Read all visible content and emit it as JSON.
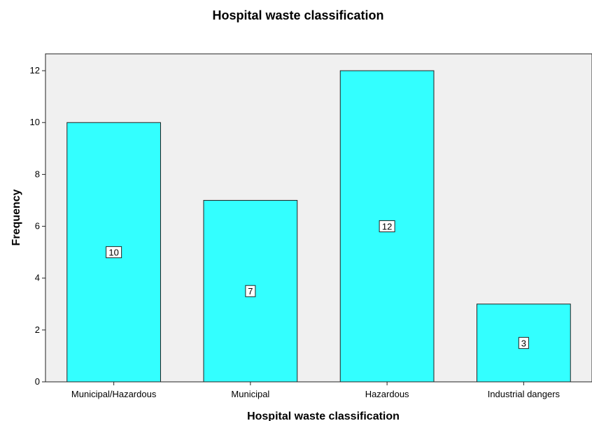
{
  "chart_data": {
    "type": "bar",
    "title": "Hospital waste classification",
    "xlabel": "Hospital waste classification",
    "ylabel": "Frequency",
    "categories": [
      "Municipal/Hazardous",
      "Municipal",
      "Hazardous",
      "Industrial dangers"
    ],
    "values": [
      10,
      7,
      12,
      3
    ],
    "data_labels": [
      "10",
      "7",
      "12",
      "3"
    ],
    "y_ticks": [
      "0",
      "2",
      "4",
      "6",
      "8",
      "10",
      "12"
    ],
    "ylim": [
      0,
      12.65
    ],
    "grid": false,
    "legend": "none",
    "colors": {
      "bar_fill": "#33ffff",
      "bar_stroke": "#222222",
      "plot_background": "#f0f0f0",
      "page_background": "#ffffff"
    }
  }
}
